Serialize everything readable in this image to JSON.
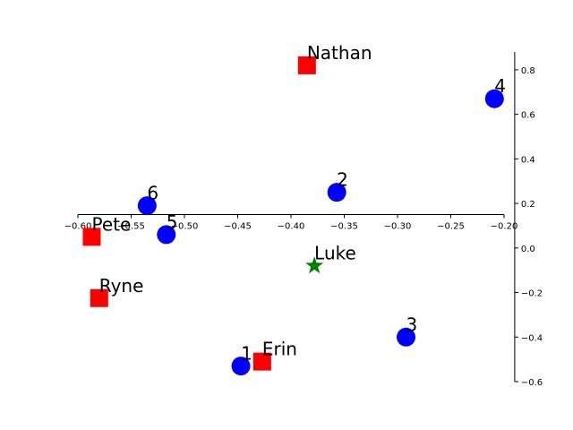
{
  "chart_data": {
    "type": "scatter",
    "xlim": [
      -0.6,
      -0.2
    ],
    "ylim": [
      -0.6,
      0.88
    ],
    "x_ticks": [
      -0.6,
      -0.55,
      -0.5,
      -0.45,
      -0.4,
      -0.35,
      -0.3,
      -0.25,
      -0.2
    ],
    "x_tick_labels": [
      "−0.60",
      "−0.55",
      "−0.50",
      "−0.45",
      "−0.40",
      "−0.35",
      "−0.30",
      "−0.25",
      "−0.20"
    ],
    "y_ticks": [
      -0.6,
      -0.4,
      -0.2,
      0.0,
      0.2,
      0.4,
      0.6,
      0.8
    ],
    "y_tick_labels": [
      "−0.6",
      "−0.4",
      "−0.2",
      "0.0",
      "0.2",
      "0.4",
      "0.6",
      "0.8"
    ],
    "x_axis_position": "y = 0.15",
    "y_axis_position": "x = -0.19",
    "grid": false,
    "series": [
      {
        "marker": "circle",
        "color": "#0000ff",
        "points": [
          {
            "label": "1",
            "x": -0.447,
            "y": -0.53
          },
          {
            "label": "2",
            "x": -0.357,
            "y": 0.25
          },
          {
            "label": "3",
            "x": -0.292,
            "y": -0.4
          },
          {
            "label": "4",
            "x": -0.209,
            "y": 0.67
          },
          {
            "label": "5",
            "x": -0.517,
            "y": 0.06
          },
          {
            "label": "6",
            "x": -0.535,
            "y": 0.19
          }
        ]
      },
      {
        "marker": "square",
        "color": "#ff0000",
        "points": [
          {
            "label": "Nathan",
            "x": -0.385,
            "y": 0.82
          },
          {
            "label": "Pete",
            "x": -0.587,
            "y": 0.05
          },
          {
            "label": "Ryne",
            "x": -0.58,
            "y": -0.225
          },
          {
            "label": "Erin",
            "x": -0.427,
            "y": -0.51
          }
        ]
      },
      {
        "marker": "star",
        "color": "#008000",
        "points": [
          {
            "label": "Luke",
            "x": -0.378,
            "y": -0.08
          }
        ]
      }
    ]
  }
}
